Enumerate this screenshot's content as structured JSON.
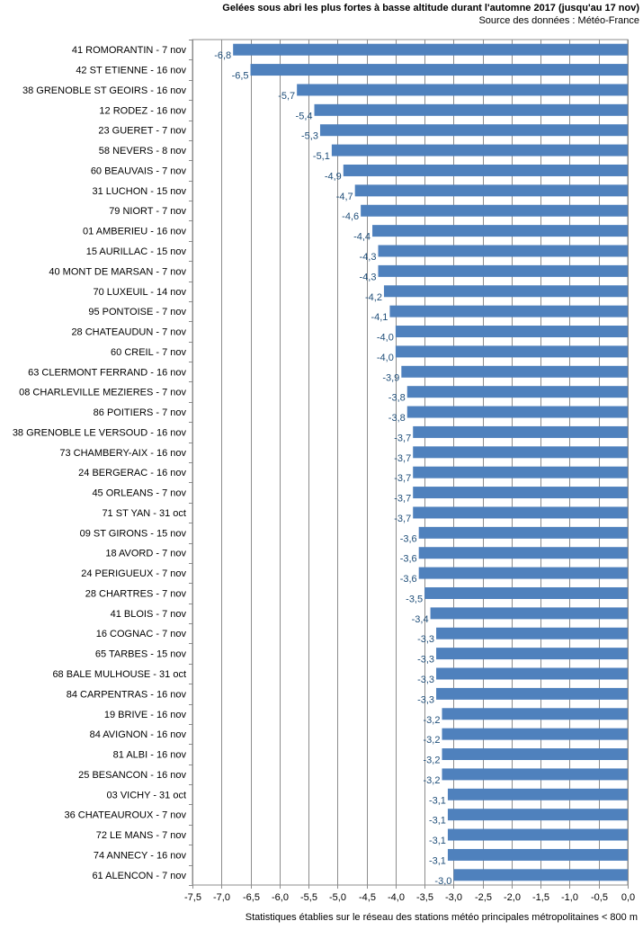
{
  "title": "Gelées sous abri les plus fortes à basse altitude durant l'automne 2017 (jusqu'au 17 nov)",
  "subtitle": "Source des données : Météo-France",
  "footnote": "Statistiques établies sur le réseau des stations météo principales métropolitaines < 800 m",
  "chart_data": {
    "type": "bar",
    "orientation": "horizontal",
    "title": "Gelées sous abri les plus fortes à basse altitude durant l'automne 2017 (jusqu'au 17 nov)",
    "xlim": [
      -7.5,
      0.0
    ],
    "xticks": [
      -7.5,
      -7.0,
      -6.5,
      -6.0,
      -5.5,
      -5.0,
      -4.5,
      -4.0,
      -3.5,
      -3.0,
      -2.5,
      -2.0,
      -1.5,
      -1.0,
      -0.5,
      0.0
    ],
    "xtick_labels": [
      "-7,5",
      "-7,0",
      "-6,5",
      "-6,0",
      "-5,5",
      "-5,0",
      "-4,5",
      "-4,0",
      "-3,5",
      "-3,0",
      "-2,5",
      "-2,0",
      "-1,5",
      "-1,0",
      "-0,5",
      "0,0"
    ],
    "grid": "vertical",
    "bar_color": "#4f81bd",
    "categories": [
      "41 ROMORANTIN - 7 nov",
      "42 ST ETIENNE - 16 nov",
      "38 GRENOBLE ST GEOIRS - 16 nov",
      "12 RODEZ - 16 nov",
      "23 GUERET - 7 nov",
      "58 NEVERS - 8 nov",
      "60 BEAUVAIS - 7 nov",
      "31 LUCHON - 15 nov",
      "79 NIORT - 7 nov",
      "01 AMBERIEU - 16 nov",
      "15 AURILLAC - 15 nov",
      "40 MONT DE MARSAN - 7 nov",
      "70 LUXEUIL - 14 nov",
      "95 PONTOISE - 7 nov",
      "28 CHATEAUDUN - 7 nov",
      "60 CREIL - 7 nov",
      "63 CLERMONT FERRAND - 16 nov",
      "08 CHARLEVILLE MEZIERES - 7 nov",
      "86 POITIERS - 7 nov",
      "38 GRENOBLE LE VERSOUD - 16 nov",
      "73 CHAMBERY-AIX - 16 nov",
      "24 BERGERAC - 16 nov",
      "45 ORLEANS - 7 nov",
      "71 ST YAN - 31 oct",
      "09 ST GIRONS - 15 nov",
      "18 AVORD - 7 nov",
      "24 PERIGUEUX - 7 nov",
      "28 CHARTRES - 7 nov",
      "41 BLOIS - 7 nov",
      "16 COGNAC - 7 nov",
      "65 TARBES - 15 nov",
      "68 BALE MULHOUSE - 31 oct",
      "84 CARPENTRAS - 16 nov",
      "19 BRIVE - 16 nov",
      "84 AVIGNON - 16 nov",
      "81 ALBI - 16 nov",
      "25 BESANCON - 16 nov",
      "03 VICHY - 31 oct",
      "36 CHATEAUROUX - 7 nov",
      "72 LE MANS - 7 nov",
      "74 ANNECY - 16 nov",
      "61 ALENCON - 7 nov"
    ],
    "values": [
      -6.8,
      -6.5,
      -5.7,
      -5.4,
      -5.3,
      -5.1,
      -4.9,
      -4.7,
      -4.6,
      -4.4,
      -4.3,
      -4.3,
      -4.2,
      -4.1,
      -4.0,
      -4.0,
      -3.9,
      -3.8,
      -3.8,
      -3.7,
      -3.7,
      -3.7,
      -3.7,
      -3.7,
      -3.6,
      -3.6,
      -3.6,
      -3.5,
      -3.4,
      -3.3,
      -3.3,
      -3.3,
      -3.3,
      -3.2,
      -3.2,
      -3.2,
      -3.2,
      -3.1,
      -3.1,
      -3.1,
      -3.1,
      -3.0
    ],
    "value_labels": [
      "-6,8",
      "-6,5",
      "-5,7",
      "-5,4",
      "-5,3",
      "-5,1",
      "-4,9",
      "-4,7",
      "-4,6",
      "-4,4",
      "-4,3",
      "-4,3",
      "-4,2",
      "-4,1",
      "-4,0",
      "-4,0",
      "-3,9",
      "-3,8",
      "-3,8",
      "-3,7",
      "-3,7",
      "-3,7",
      "-3,7",
      "-3,7",
      "-3,6",
      "-3,6",
      "-3,6",
      "-3,5",
      "-3,4",
      "-3,3",
      "-3,3",
      "-3,3",
      "-3,3",
      "-3,2",
      "-3,2",
      "-3,2",
      "-3,2",
      "-3,1",
      "-3,1",
      "-3,1",
      "-3,1",
      "-3,0"
    ]
  }
}
